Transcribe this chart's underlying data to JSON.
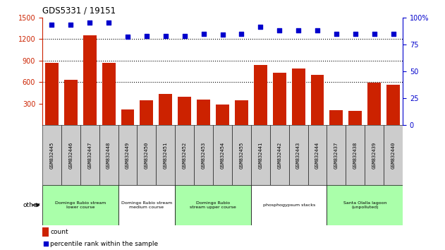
{
  "title": "GDS5331 / 19151",
  "samples": [
    "GSM832445",
    "GSM832446",
    "GSM832447",
    "GSM832448",
    "GSM832449",
    "GSM832450",
    "GSM832451",
    "GSM832452",
    "GSM832453",
    "GSM832454",
    "GSM832455",
    "GSM832441",
    "GSM832442",
    "GSM832443",
    "GSM832444",
    "GSM832437",
    "GSM832438",
    "GSM832439",
    "GSM832440"
  ],
  "counts": [
    870,
    635,
    1255,
    870,
    215,
    340,
    430,
    390,
    350,
    290,
    345,
    840,
    730,
    790,
    700,
    210,
    195,
    590,
    565
  ],
  "percentiles": [
    93,
    93,
    95,
    95,
    82,
    83,
    83,
    83,
    85,
    84,
    85,
    91,
    88,
    88,
    88,
    85,
    85,
    85,
    85
  ],
  "groups": [
    {
      "label": "Domingo Rubio stream\nlower course",
      "start": 0,
      "end": 4,
      "color": "#aaffaa"
    },
    {
      "label": "Domingo Rubio stream\nmedium course",
      "start": 4,
      "end": 7,
      "color": "#ffffff"
    },
    {
      "label": "Domingo Rubio\nstream upper course",
      "start": 7,
      "end": 11,
      "color": "#aaffaa"
    },
    {
      "label": "phosphogypsum stacks",
      "start": 11,
      "end": 15,
      "color": "#ffffff"
    },
    {
      "label": "Santa Olalla lagoon\n(unpolluted)",
      "start": 15,
      "end": 19,
      "color": "#aaffaa"
    }
  ],
  "ylim_left": [
    0,
    1500
  ],
  "ylim_right": [
    0,
    100
  ],
  "yticks_left": [
    300,
    600,
    900,
    1200,
    1500
  ],
  "yticks_right": [
    0,
    25,
    50,
    75,
    100
  ],
  "grid_lines": [
    600,
    900,
    1200
  ],
  "bar_color": "#cc2200",
  "dot_color": "#0000cc",
  "sample_box_color": "#cccccc",
  "other_label": "other"
}
